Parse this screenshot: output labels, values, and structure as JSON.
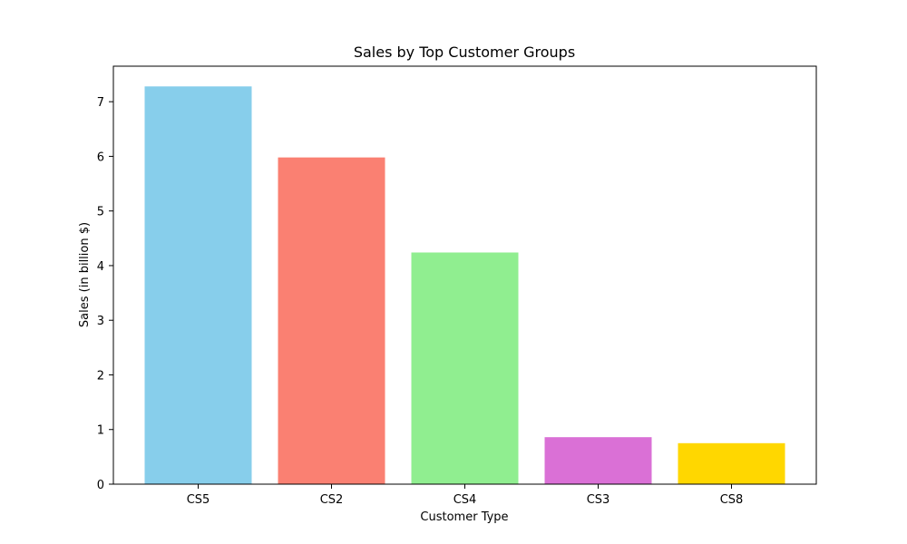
{
  "chart_data": {
    "type": "bar",
    "title": "Sales by Top Customer Groups",
    "xlabel": "Customer Type",
    "ylabel": "Sales (in billion $)",
    "categories": [
      "CS5",
      "CS2",
      "CS4",
      "CS3",
      "CS8"
    ],
    "values": [
      7.28,
      5.98,
      4.24,
      0.86,
      0.75
    ],
    "colors": [
      "#87ceeb",
      "#fa8072",
      "#90ee90",
      "#da70d6",
      "#ffd700"
    ],
    "ylim": [
      0,
      7.65
    ],
    "yticks": [
      0,
      1,
      2,
      3,
      4,
      5,
      6,
      7
    ],
    "grid": false,
    "legend": false
  }
}
